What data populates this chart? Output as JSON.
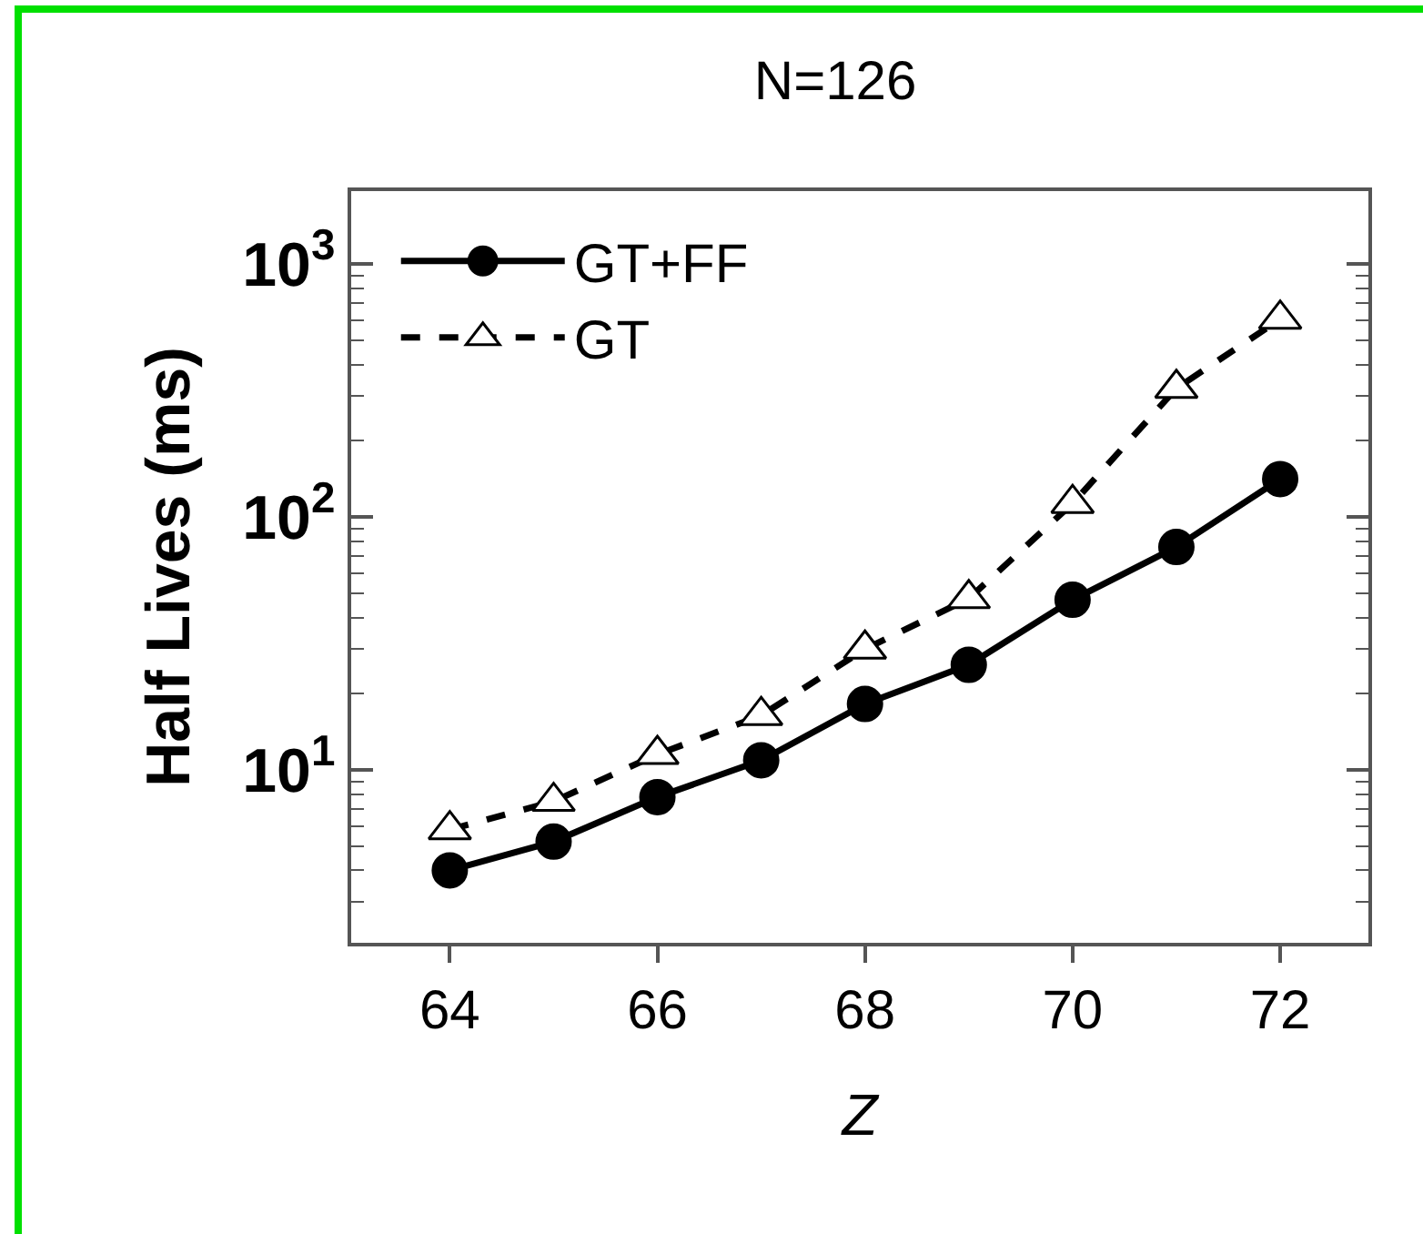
{
  "chart_data": {
    "type": "line",
    "title": "N=126",
    "xlabel": "Z",
    "ylabel": "Half Lives (ms)",
    "x": [
      64,
      65,
      66,
      67,
      68,
      69,
      70,
      71,
      72
    ],
    "series": [
      {
        "name": "GT+FF",
        "color": "#000000",
        "marker": "circle",
        "line_style": "solid",
        "values": [
          4.0,
          5.2,
          7.8,
          10.9,
          18.2,
          26,
          47,
          76,
          141
        ]
      },
      {
        "name": "GT",
        "color": "#000000",
        "marker": "triangle",
        "line_style": "dashed",
        "values": [
          5.8,
          7.5,
          11.5,
          16.4,
          30,
          47.5,
          113,
          322,
          605
        ]
      }
    ],
    "log": "y",
    "xlim": [
      63.05,
      72.85
    ],
    "xticks": [
      64,
      66,
      68,
      70,
      72
    ],
    "ylim": [
      2.07,
      1940
    ],
    "yticks": [
      {
        "value": 3,
        "label": null
      },
      {
        "value": 4,
        "label": null
      },
      {
        "value": 5,
        "label": null
      },
      {
        "value": 6,
        "label": null
      },
      {
        "value": 7,
        "label": null
      },
      {
        "value": 8,
        "label": null
      },
      {
        "value": 9,
        "label": null
      },
      {
        "value": 10,
        "label": "10$^{1}$"
      },
      {
        "value": 20,
        "label": null
      },
      {
        "value": 30,
        "label": null
      },
      {
        "value": 40,
        "label": null
      },
      {
        "value": 50,
        "label": null
      },
      {
        "value": 60,
        "label": null
      },
      {
        "value": 70,
        "label": null
      },
      {
        "value": 80,
        "label": null
      },
      {
        "value": 90,
        "label": null
      },
      {
        "value": 100,
        "label": "10$^{2}$"
      },
      {
        "value": 200,
        "label": null
      },
      {
        "value": 300,
        "label": null
      },
      {
        "value": 400,
        "label": null
      },
      {
        "value": 500,
        "label": null
      },
      {
        "value": 600,
        "label": null
      },
      {
        "value": 700,
        "label": null
      },
      {
        "value": 800,
        "label": null
      },
      {
        "value": 900,
        "label": null
      },
      {
        "value": 1000,
        "label": "10$^{3}$"
      }
    ],
    "grid": false,
    "legend": "top left"
  }
}
